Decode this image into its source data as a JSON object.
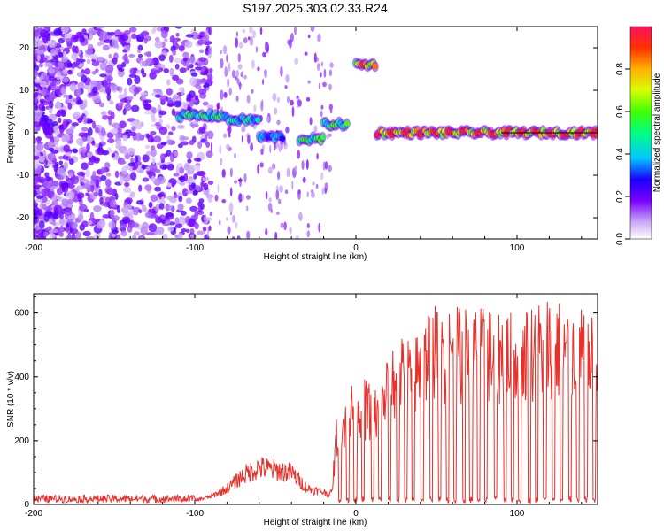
{
  "title": "S197.2025.303.02.33.R24",
  "chart_data": [
    {
      "type": "heatmap",
      "name": "spectrogram",
      "xlabel": "Height of straight line (km)",
      "ylabel": "Frequency (Hz)",
      "xlim": [
        -200,
        150
      ],
      "ylim": [
        -25,
        25
      ],
      "x_ticks": [
        -200,
        -100,
        0,
        100
      ],
      "x_tick_labels": [
        "-200",
        "-100",
        "0",
        "100"
      ],
      "y_ticks": [
        -20,
        -10,
        0,
        10,
        20
      ],
      "y_tick_labels": [
        "-20",
        "-10",
        "0",
        "10",
        "20"
      ],
      "colorbar": {
        "label": "Normalized spectral amplitude",
        "range": [
          0,
          1
        ],
        "ticks": [
          0.0,
          0.2,
          0.4,
          0.6,
          0.8
        ],
        "tick_labels": [
          "0.0",
          "0.2",
          "0.4",
          "0.6",
          "0.8"
        ]
      },
      "ridge": [
        {
          "x_range": [
            -110,
            -80
          ],
          "freq": 4,
          "peak_amp": 0.55
        },
        {
          "x_range": [
            -80,
            -60
          ],
          "freq": 3,
          "peak_amp": 0.5
        },
        {
          "x_range": [
            -60,
            -45
          ],
          "freq": -1,
          "peak_amp": 0.4
        },
        {
          "x_range": [
            -35,
            -20
          ],
          "freq": -1.5,
          "peak_amp": 0.6
        },
        {
          "x_range": [
            -20,
            -5
          ],
          "freq": 2,
          "peak_amp": 0.6
        },
        {
          "x_range": [
            0,
            12
          ],
          "freq": 16,
          "peak_amp": 0.9
        },
        {
          "x_range": [
            13,
            150
          ],
          "freq": 0,
          "peak_amp": 0.95
        }
      ]
    },
    {
      "type": "line",
      "name": "snr",
      "xlabel": "Height of straight line (km)",
      "ylabel": "SNR (10 * v/v)",
      "xlim": [
        -200,
        150
      ],
      "ylim": [
        0,
        660
      ],
      "x_ticks": [
        -200,
        -100,
        0,
        100
      ],
      "x_tick_labels": [
        "-200",
        "-100",
        "0",
        "100"
      ],
      "y_ticks": [
        0,
        200,
        400,
        600
      ],
      "y_tick_labels": [
        "0",
        "200",
        "400",
        "600"
      ],
      "color": "#e8312b",
      "envelope": [
        {
          "x": -200,
          "y": 15
        },
        {
          "x": -100,
          "y": 15
        },
        {
          "x": -90,
          "y": 30
        },
        {
          "x": -80,
          "y": 60
        },
        {
          "x": -70,
          "y": 110
        },
        {
          "x": -60,
          "y": 140
        },
        {
          "x": -50,
          "y": 130
        },
        {
          "x": -40,
          "y": 120
        },
        {
          "x": -30,
          "y": 60
        },
        {
          "x": -15,
          "y": 40
        },
        {
          "x": -12,
          "y": 260
        },
        {
          "x": 0,
          "y": 380
        },
        {
          "x": 15,
          "y": 330
        },
        {
          "x": 20,
          "y": 460
        },
        {
          "x": 40,
          "y": 500
        },
        {
          "x": 45,
          "y": 570
        },
        {
          "x": 100,
          "y": 560
        },
        {
          "x": 120,
          "y": 600
        },
        {
          "x": 150,
          "y": 540
        }
      ]
    }
  ]
}
